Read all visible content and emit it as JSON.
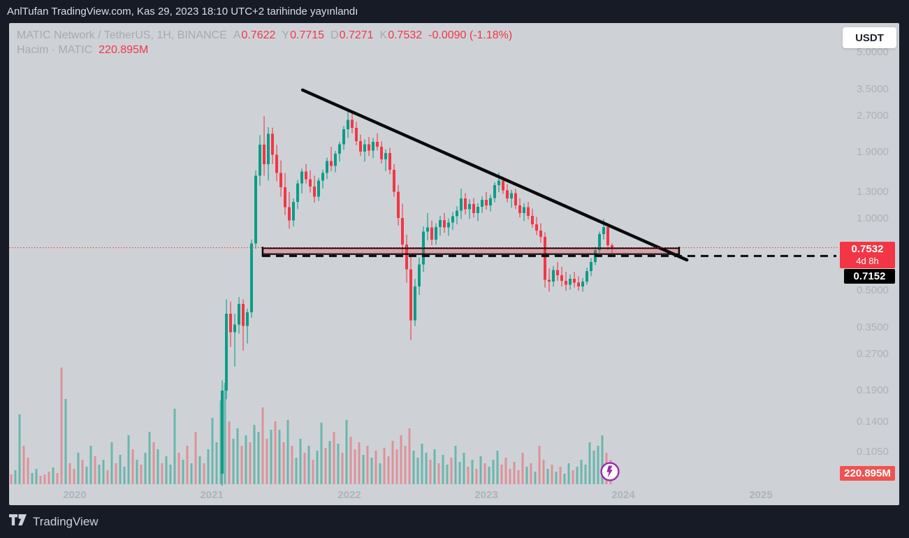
{
  "published_bar": {
    "text": "AnlTufan TradingView.com, Kas 29, 2023 18:10 UTC+2 tarihinde yayınlandı"
  },
  "toolbar": {
    "currency_button": "USDT"
  },
  "legend": {
    "symbol": "MATIC Network / TetherUS, 1H, BINANCE",
    "open_label": "A",
    "open": "0.7622",
    "high_label": "Y",
    "high": "0.7715",
    "low_label": "D",
    "low": "0.7271",
    "close_label": "K",
    "close": "0.7532",
    "change": "-0.0090 (-1.18%)",
    "volume_label": "Hacim · MATIC",
    "volume_value": "220.895M"
  },
  "price_axis": {
    "tick_labels": [
      "5.0000",
      "3.5000",
      "2.7000",
      "1.9000",
      "1.3000",
      "1.0000",
      "0.5000",
      "0.3500",
      "0.2700",
      "0.1900",
      "0.1400",
      "0.1050"
    ],
    "last_price_label": {
      "price": "0.7532",
      "countdown": "4d 8h",
      "bg": "#f23645"
    },
    "low_label": {
      "price": "0.7152",
      "bg": "#000000"
    },
    "volume_axis_label": {
      "text": "220.895M",
      "bg": "#ef5350"
    }
  },
  "time_axis": {
    "labels": [
      "2020",
      "2021",
      "2022",
      "2023",
      "2024",
      "2025"
    ]
  },
  "footer": {
    "brand": "TradingView"
  },
  "colors": {
    "frame_bg": "#171b26",
    "chart_bg": "#ced2d6",
    "candle_up": "#0c9c87",
    "candle_down": "#f23645",
    "volume_up": "rgba(8,153,129,0.5)",
    "volume_down": "rgba(242,54,69,0.42)",
    "trendline": "#0b0b0d",
    "price_line": "#f23645",
    "channel_fill": "rgba(242,54,69,0.30)",
    "badge_purple": "#9c27b0"
  },
  "chart_data": {
    "type": "candlestick+volume",
    "symbol": "MATIC/USDT",
    "exchange": "BINANCE",
    "scale": "log",
    "price_ticks": [
      5.0,
      3.5,
      2.7,
      1.9,
      1.3,
      1.0,
      0.5,
      0.35,
      0.27,
      0.19,
      0.14,
      0.105
    ],
    "years": [
      2020,
      2021,
      2022,
      2023,
      2024,
      2025
    ],
    "last_close": 0.7532,
    "candles_start_year": 2021.075,
    "bar_interval_years": 0.030565,
    "candles": [
      [
        0.085,
        0.21,
        0.07,
        0.19
      ],
      [
        0.19,
        0.46,
        0.175,
        0.4
      ],
      [
        0.4,
        0.45,
        0.29,
        0.335
      ],
      [
        0.335,
        0.4,
        0.24,
        0.36
      ],
      [
        0.36,
        0.47,
        0.33,
        0.44
      ],
      [
        0.44,
        0.46,
        0.28,
        0.355
      ],
      [
        0.355,
        0.42,
        0.3,
        0.405
      ],
      [
        0.405,
        0.82,
        0.385,
        0.79
      ],
      [
        0.79,
        1.6,
        0.75,
        1.52
      ],
      [
        1.52,
        2.25,
        1.38,
        2.05
      ],
      [
        2.05,
        2.7,
        1.52,
        1.7
      ],
      [
        1.7,
        2.43,
        1.45,
        2.28
      ],
      [
        2.28,
        2.42,
        1.7,
        1.86
      ],
      [
        1.86,
        2.05,
        1.44,
        1.56
      ],
      [
        1.56,
        1.76,
        1.24,
        1.36
      ],
      [
        1.36,
        1.56,
        1.04,
        1.12
      ],
      [
        1.12,
        1.3,
        0.91,
        0.985
      ],
      [
        0.985,
        1.22,
        0.93,
        1.18
      ],
      [
        1.18,
        1.46,
        1.1,
        1.41
      ],
      [
        1.41,
        1.63,
        1.28,
        1.58
      ],
      [
        1.58,
        1.7,
        1.41,
        1.47
      ],
      [
        1.47,
        1.6,
        1.29,
        1.37
      ],
      [
        1.37,
        1.52,
        1.17,
        1.24
      ],
      [
        1.24,
        1.49,
        1.19,
        1.45
      ],
      [
        1.45,
        1.61,
        1.34,
        1.56
      ],
      [
        1.56,
        1.81,
        1.47,
        1.75
      ],
      [
        1.75,
        2.01,
        1.59,
        1.67
      ],
      [
        1.67,
        1.93,
        1.57,
        1.88
      ],
      [
        1.88,
        2.11,
        1.74,
        2.06
      ],
      [
        2.06,
        2.46,
        1.95,
        2.38
      ],
      [
        2.38,
        2.88,
        2.19,
        2.61
      ],
      [
        2.61,
        2.8,
        2.29,
        2.41
      ],
      [
        2.41,
        2.56,
        2.04,
        2.12
      ],
      [
        2.12,
        2.26,
        1.84,
        1.92
      ],
      [
        1.92,
        2.16,
        1.74,
        2.06
      ],
      [
        2.06,
        2.21,
        1.84,
        1.94
      ],
      [
        1.94,
        2.19,
        1.8,
        2.11
      ],
      [
        2.11,
        2.29,
        1.94,
        2.01
      ],
      [
        2.01,
        2.12,
        1.71,
        1.78
      ],
      [
        1.78,
        1.96,
        1.59,
        1.89
      ],
      [
        1.89,
        1.99,
        1.54,
        1.61
      ],
      [
        1.61,
        1.7,
        1.24,
        1.3
      ],
      [
        1.3,
        1.39,
        0.94,
        1.01
      ],
      [
        1.01,
        1.16,
        0.71,
        0.78
      ],
      [
        0.78,
        0.86,
        0.54,
        0.615
      ],
      [
        0.615,
        0.7,
        0.31,
        0.375
      ],
      [
        0.375,
        0.56,
        0.355,
        0.52
      ],
      [
        0.52,
        0.69,
        0.48,
        0.645
      ],
      [
        0.645,
        0.93,
        0.6,
        0.885
      ],
      [
        0.885,
        1.06,
        0.815,
        0.92
      ],
      [
        0.92,
        0.985,
        0.775,
        0.82
      ],
      [
        0.82,
        0.96,
        0.78,
        0.925
      ],
      [
        0.925,
        1.03,
        0.85,
        0.99
      ],
      [
        0.99,
        1.06,
        0.875,
        0.92
      ],
      [
        0.92,
        1.005,
        0.85,
        0.965
      ],
      [
        0.965,
        1.07,
        0.9,
        1.025
      ],
      [
        1.025,
        1.13,
        0.95,
        1.085
      ],
      [
        1.085,
        1.34,
        1.0,
        1.22
      ],
      [
        1.22,
        1.285,
        1.045,
        1.1
      ],
      [
        1.1,
        1.21,
        1.0,
        1.155
      ],
      [
        1.155,
        1.225,
        1.015,
        1.06
      ],
      [
        1.06,
        1.165,
        0.98,
        1.125
      ],
      [
        1.125,
        1.245,
        1.06,
        1.205
      ],
      [
        1.205,
        1.3,
        1.095,
        1.14
      ],
      [
        1.14,
        1.265,
        1.075,
        1.225
      ],
      [
        1.225,
        1.425,
        1.175,
        1.385
      ],
      [
        1.385,
        1.565,
        1.295,
        1.45
      ],
      [
        1.45,
        1.505,
        1.275,
        1.32
      ],
      [
        1.32,
        1.4,
        1.175,
        1.22
      ],
      [
        1.22,
        1.325,
        1.115,
        1.285
      ],
      [
        1.285,
        1.34,
        1.1,
        1.14
      ],
      [
        1.14,
        1.22,
        1.015,
        1.06
      ],
      [
        1.06,
        1.165,
        0.98,
        1.12
      ],
      [
        1.12,
        1.18,
        0.995,
        1.03
      ],
      [
        1.03,
        1.105,
        0.92,
        0.95
      ],
      [
        0.95,
        1.02,
        0.855,
        0.895
      ],
      [
        0.895,
        0.96,
        0.795,
        0.84
      ],
      [
        0.84,
        0.88,
        0.515,
        0.555
      ],
      [
        0.555,
        0.62,
        0.495,
        0.545
      ],
      [
        0.545,
        0.635,
        0.52,
        0.61
      ],
      [
        0.61,
        0.66,
        0.55,
        0.58
      ],
      [
        0.58,
        0.63,
        0.52,
        0.55
      ],
      [
        0.55,
        0.6,
        0.5,
        0.53
      ],
      [
        0.53,
        0.585,
        0.505,
        0.56
      ],
      [
        0.56,
        0.6,
        0.515,
        0.54
      ],
      [
        0.54,
        0.575,
        0.5,
        0.52
      ],
      [
        0.52,
        0.565,
        0.495,
        0.545
      ],
      [
        0.545,
        0.625,
        0.53,
        0.605
      ],
      [
        0.605,
        0.685,
        0.575,
        0.66
      ],
      [
        0.66,
        0.765,
        0.64,
        0.74
      ],
      [
        0.74,
        0.885,
        0.72,
        0.865
      ],
      [
        0.865,
        1.0,
        0.82,
        0.925
      ],
      [
        0.925,
        0.945,
        0.74,
        0.775
      ],
      [
        0.775,
        0.79,
        0.715,
        0.7532
      ]
    ],
    "volume_start_year": 2019.536,
    "volume": [
      "14r",
      "20g",
      "100g",
      "55r",
      "38r",
      "16g",
      "22g",
      "12r",
      "14r",
      "18r",
      "24g",
      "16r",
      "167r",
      "122g",
      "30r",
      "22r",
      "45g",
      "35r",
      "25g",
      "55g",
      "40r",
      "28g",
      "35g",
      "20r",
      "60g",
      "30r",
      "42g",
      "25g",
      "70g",
      "50r",
      "35g",
      "28r",
      "45g",
      "75g",
      "60r",
      "50g",
      "30r",
      "40g",
      "28g",
      "108g",
      "45r",
      "35g",
      "55r",
      "30g",
      "75r",
      "40g",
      "30r",
      "50g",
      "95g",
      "60g",
      "120g",
      "145g",
      "90r",
      "65g",
      "80g",
      "55r",
      "70g",
      "60r",
      "85g",
      "75g",
      "110r",
      "65r",
      "78g",
      "90r",
      "78g",
      "60r",
      "92g",
      "55r",
      "38g",
      "65g",
      "45r",
      "55g",
      "35r",
      "48g",
      "88g",
      "52r",
      "62g",
      "75r",
      "58g",
      "45r",
      "92g",
      "68r",
      "50r",
      "60r",
      "42g",
      "55r",
      "38g",
      "48r",
      "30g",
      "52r",
      "40r",
      "62r",
      "50r",
      "70r",
      "55r",
      "80r",
      "48g",
      "38g",
      "58g",
      "45g",
      "35r",
      "50g",
      "30r",
      "42g",
      "28g",
      "38r",
      "55g",
      "32g",
      "45g",
      "25r",
      "35g",
      "22r",
      "40g",
      "30r",
      "25g",
      "35g",
      "48g",
      "28r",
      "38r",
      "22r",
      "32r",
      "20r",
      "45r",
      "25g",
      "30r",
      "18g",
      "55r",
      "35r",
      "22g",
      "28r",
      "18g",
      "25r",
      "15g",
      "30g",
      "20r",
      "25g",
      "35g",
      "28g",
      "60g",
      "48g",
      "55g",
      "70g",
      "45r",
      "35r"
    ],
    "annotations": {
      "trendline": {
        "x1_year": 2021.661,
        "y1_price": 3.48,
        "x2_year": 2024.463,
        "y2_price": 0.673
      },
      "support_channel": {
        "start_year": 2021.37,
        "end_year": 2024.406,
        "top_price": 0.754,
        "bottom_price": 0.712
      },
      "dashed_support": {
        "start_year": 2021.37,
        "end_year": 2025.553,
        "price": 0.699
      },
      "current_price_line": {
        "price": 0.7532
      },
      "idea_badge": {
        "year": 2023.902
      }
    }
  }
}
